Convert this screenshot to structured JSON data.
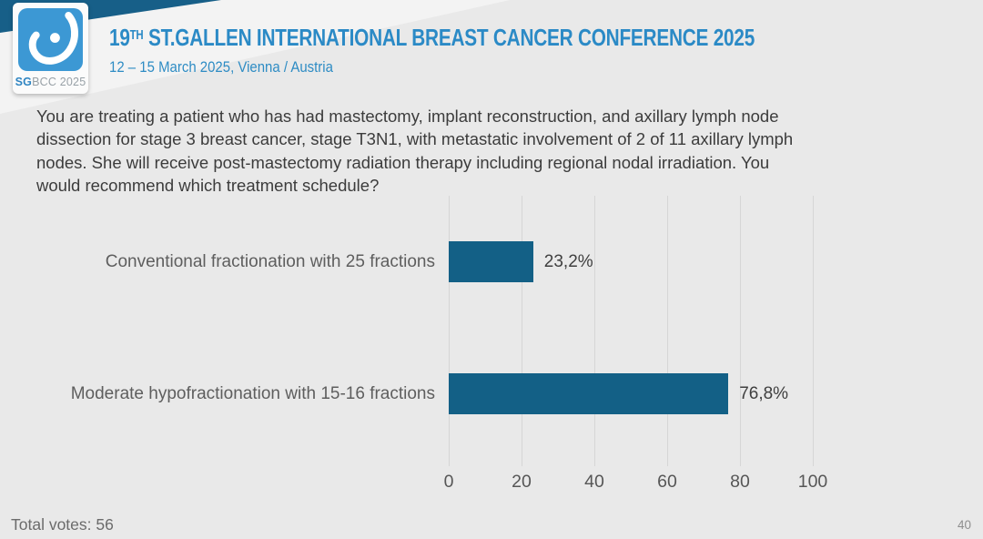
{
  "header": {
    "logo": {
      "icon": "sgbcc-breast-icon",
      "brand_sg": "SG",
      "brand_rest": "BCC 2025"
    },
    "title_number": "19",
    "title_sup": "TH",
    "title_rest": " ST.GALLEN INTERNATIONAL BREAST CANCER CONFERENCE 2025",
    "subtitle": "12 – 15 March 2025, Vienna / Austria"
  },
  "question": {
    "lines": [
      "You are treating a patient who has had mastectomy, implant reconstruction, and axillary lymph node",
      "dissection for stage 3 breast cancer, stage T3N1, with metastatic involvement of 2 of 11 axillary lymph",
      "nodes.  She will receive post-mastectomy radiation therapy including regional nodal irradiation.  You",
      "would recommend which treatment schedule?"
    ]
  },
  "chart_data": {
    "type": "bar",
    "orientation": "horizontal",
    "categories": [
      "Conventional fractionation with 25 fractions",
      "Moderate hypofractionation with 15-16 fractions"
    ],
    "values": [
      23.2,
      76.8
    ],
    "value_labels": [
      "23,2%",
      "76,8%"
    ],
    "xlim": [
      0,
      100
    ],
    "x_ticks": [
      "0",
      "20",
      "40",
      "60",
      "80",
      "100"
    ],
    "grid": true,
    "legend": "none",
    "bar_color": "#136086",
    "total_votes": 56
  },
  "footer": {
    "total_votes": "Total votes: 56",
    "page_number": "40"
  },
  "colors": {
    "background": "#e9e9e9",
    "header_band": "#175f88",
    "light_wedge": "#f3f3f3",
    "title_blue": "#2b8ac6",
    "logo_blue": "#3c98d4",
    "bar_blue": "#136086",
    "gridline": "#d6d6d6"
  }
}
